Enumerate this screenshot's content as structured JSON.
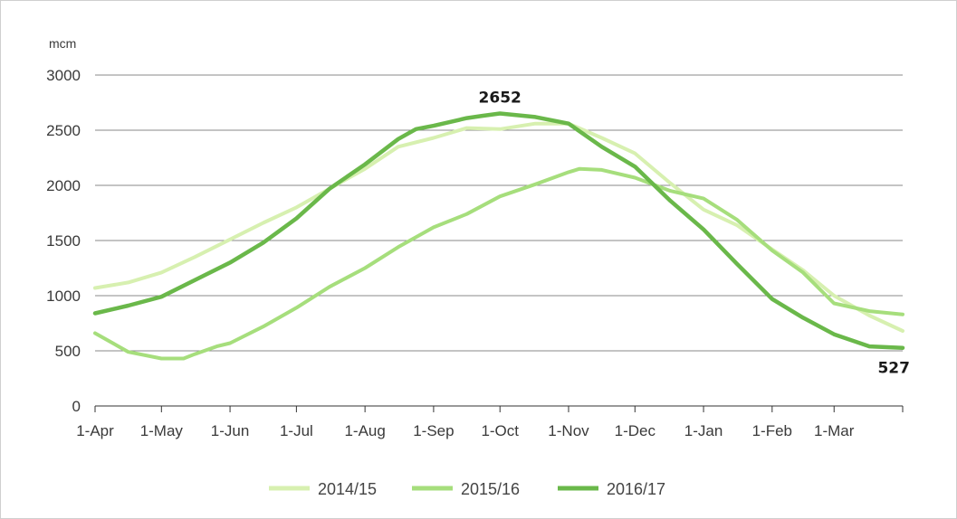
{
  "chart_data": {
    "type": "line",
    "title": "",
    "xlabel": "",
    "ylabel": "mcm",
    "ylim": [
      0,
      3000
    ],
    "yticks": [
      "0",
      "500",
      "1000",
      "1500",
      "2000",
      "2500",
      "3000"
    ],
    "xlim": [
      0,
      365
    ],
    "x_tick_labels": [
      "1-Apr",
      "1-May",
      "1-Jun",
      "1-Jul",
      "1-Aug",
      "1-Sep",
      "1-Oct",
      "1-Nov",
      "1-Dec",
      "1-Jan",
      "1-Feb",
      "1-Mar"
    ],
    "x_tick_days": [
      0,
      30,
      61,
      91,
      122,
      153,
      183,
      214,
      244,
      275,
      306,
      334
    ],
    "grid": true,
    "legend_position": "bottom",
    "series": [
      {
        "name": "2014/15",
        "color": "#d7f0b0",
        "x": [
          0,
          15,
          30,
          45,
          61,
          76,
          91,
          106,
          122,
          137,
          153,
          168,
          183,
          199,
          214,
          229,
          244,
          260,
          275,
          290,
          306,
          320,
          334,
          350,
          365
        ],
        "y": [
          1070,
          1120,
          1210,
          1350,
          1510,
          1660,
          1800,
          1970,
          2150,
          2350,
          2430,
          2520,
          2510,
          2560,
          2560,
          2430,
          2290,
          2020,
          1780,
          1640,
          1420,
          1230,
          1000,
          820,
          680
        ]
      },
      {
        "name": "2015/16",
        "color": "#a6de7c",
        "x": [
          0,
          15,
          30,
          40,
          45,
          55,
          61,
          76,
          91,
          106,
          122,
          137,
          153,
          168,
          183,
          199,
          214,
          219,
          229,
          244,
          260,
          275,
          290,
          306,
          320,
          334,
          350,
          365
        ],
        "y": [
          660,
          490,
          430,
          430,
          470,
          540,
          570,
          720,
          890,
          1080,
          1250,
          1440,
          1620,
          1740,
          1900,
          2010,
          2120,
          2150,
          2140,
          2070,
          1950,
          1880,
          1690,
          1410,
          1210,
          930,
          860,
          830
        ]
      },
      {
        "name": "2016/17",
        "color": "#6ab84a",
        "x": [
          0,
          15,
          30,
          45,
          61,
          76,
          91,
          106,
          122,
          137,
          145,
          153,
          168,
          175,
          183,
          199,
          214,
          229,
          244,
          260,
          275,
          290,
          306,
          320,
          334,
          350,
          365
        ],
        "y": [
          840,
          910,
          990,
          1140,
          1300,
          1480,
          1700,
          1970,
          2190,
          2420,
          2510,
          2540,
          2610,
          2630,
          2652,
          2620,
          2560,
          2350,
          2170,
          1860,
          1600,
          1290,
          970,
          800,
          650,
          540,
          527
        ]
      }
    ],
    "annotations": [
      {
        "text": "2652",
        "x": 183,
        "y": 2652,
        "position": "above"
      },
      {
        "text": "527",
        "x": 361,
        "y": 527,
        "position": "below"
      }
    ]
  }
}
